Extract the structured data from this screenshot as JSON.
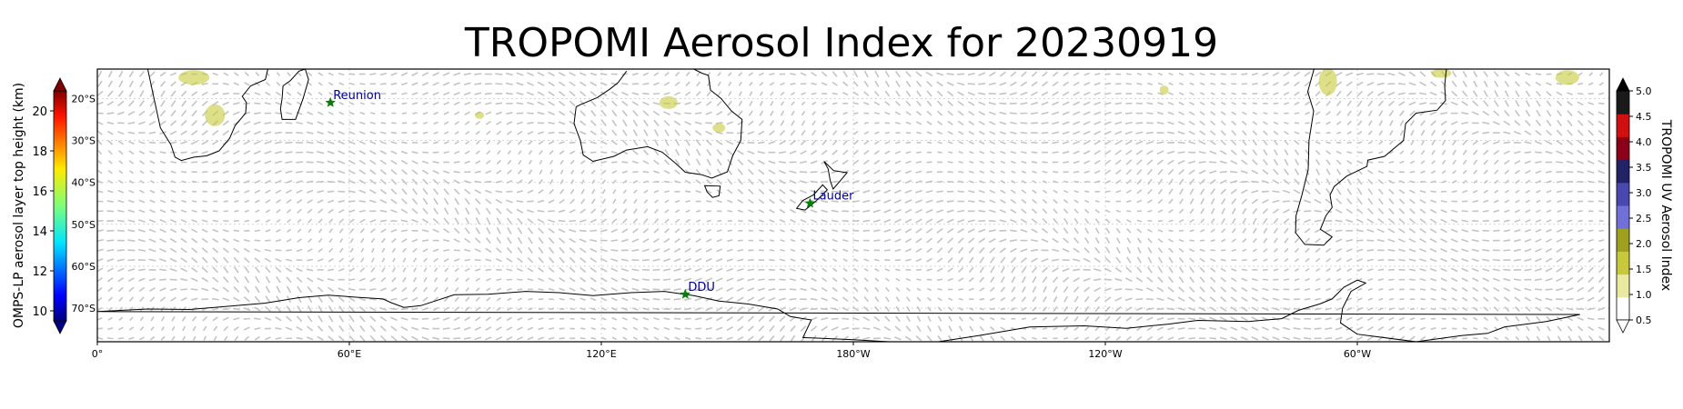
{
  "title": "TROPOMI Aerosol Index for 20230919",
  "map": {
    "projection": "PlateCarree (central longitude 180)",
    "lon_range_deg_east": [
      0,
      360
    ],
    "lat_range_deg": [
      -78,
      -13
    ],
    "lon_ticks": [
      "0°",
      "60°E",
      "120°E",
      "180°W",
      "120°W",
      "60°W"
    ],
    "lat_ticks": [
      "20°S",
      "30°S",
      "40°S",
      "50°S",
      "60°S",
      "70°S"
    ],
    "gridlines": true,
    "background_layer": "grey wind-vector arrows",
    "coastline_color": "#000000"
  },
  "stations": [
    {
      "name": "Reunion",
      "lon": 55.5,
      "lat": -21.0
    },
    {
      "name": "Lauder",
      "lon": 169.7,
      "lat": -45.0
    },
    {
      "name": "DDU",
      "lon": 140.0,
      "lat": -66.7
    }
  ],
  "station_marker_color": "#0a7d0a",
  "station_label_color": "#00008b",
  "colorbar_left": {
    "label": "OMPS-LP aerosol layer top height (km)",
    "min": 9.5,
    "max": 21,
    "ticks": [
      "20",
      "18",
      "16",
      "14",
      "12",
      "10"
    ],
    "colormap": "jet"
  },
  "colorbar_right": {
    "label": "TROPOMI UV Aerosol Index",
    "min": 0.5,
    "max": 5.0,
    "ticks": [
      "5.0",
      "4.5",
      "4.0",
      "3.5",
      "3.0",
      "2.5",
      "2.0",
      "1.5",
      "1.0",
      "0.5"
    ],
    "colors": [
      "#ffffff",
      "#e9e9a0",
      "#c8c83c",
      "#a0a020",
      "#7070d8",
      "#4848b0",
      "#222266",
      "#8b0018",
      "#d01010",
      "#1a1a1a"
    ]
  },
  "aerosol_index_patch_color": "#c7c93a"
}
